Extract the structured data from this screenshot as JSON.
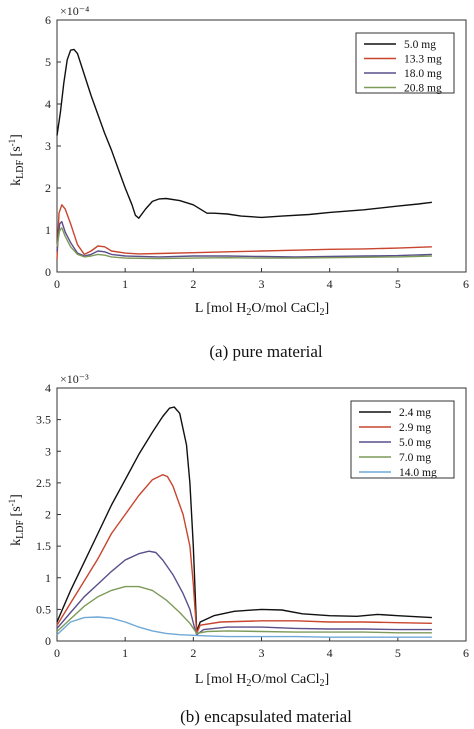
{
  "chart_data": [
    {
      "id": "a",
      "type": "line",
      "caption": "(a) pure material",
      "xlabel": "L [mol H₂O/mol CaCl₂]",
      "ylabel": "k_LDF [s⁻¹]",
      "y_multiplier": "×10⁻⁴",
      "xlim": [
        0,
        6
      ],
      "ylim": [
        0,
        6
      ],
      "xticks": [
        "0",
        "1",
        "2",
        "3",
        "4",
        "5",
        "6"
      ],
      "yticks": [
        "0",
        "1",
        "2",
        "3",
        "4",
        "5",
        "6"
      ],
      "legend_position": "top-right",
      "series": [
        {
          "name": "5.0 mg",
          "color": "#111111",
          "points": [
            [
              0,
              3.25
            ],
            [
              0.05,
              3.8
            ],
            [
              0.1,
              4.5
            ],
            [
              0.15,
              5.05
            ],
            [
              0.2,
              5.28
            ],
            [
              0.25,
              5.3
            ],
            [
              0.3,
              5.2
            ],
            [
              0.4,
              4.7
            ],
            [
              0.5,
              4.2
            ],
            [
              0.6,
              3.75
            ],
            [
              0.7,
              3.3
            ],
            [
              0.8,
              2.9
            ],
            [
              0.9,
              2.45
            ],
            [
              1.0,
              2.0
            ],
            [
              1.1,
              1.6
            ],
            [
              1.15,
              1.35
            ],
            [
              1.2,
              1.28
            ],
            [
              1.3,
              1.5
            ],
            [
              1.4,
              1.68
            ],
            [
              1.5,
              1.74
            ],
            [
              1.6,
              1.75
            ],
            [
              1.8,
              1.7
            ],
            [
              2.0,
              1.6
            ],
            [
              2.2,
              1.4
            ],
            [
              2.3,
              1.4
            ],
            [
              2.5,
              1.38
            ],
            [
              2.7,
              1.33
            ],
            [
              3.0,
              1.3
            ],
            [
              3.3,
              1.33
            ],
            [
              3.7,
              1.37
            ],
            [
              4.0,
              1.42
            ],
            [
              4.5,
              1.48
            ],
            [
              5.0,
              1.57
            ],
            [
              5.3,
              1.62
            ],
            [
              5.5,
              1.66
            ]
          ]
        },
        {
          "name": "13.3 mg",
          "color": "#c8452e",
          "points": [
            [
              0,
              0.3
            ],
            [
              0.03,
              1.4
            ],
            [
              0.07,
              1.6
            ],
            [
              0.12,
              1.5
            ],
            [
              0.2,
              1.15
            ],
            [
              0.3,
              0.65
            ],
            [
              0.4,
              0.42
            ],
            [
              0.5,
              0.5
            ],
            [
              0.6,
              0.62
            ],
            [
              0.7,
              0.6
            ],
            [
              0.8,
              0.5
            ],
            [
              1.0,
              0.45
            ],
            [
              1.2,
              0.43
            ],
            [
              1.5,
              0.44
            ],
            [
              2.0,
              0.46
            ],
            [
              2.5,
              0.48
            ],
            [
              3.0,
              0.5
            ],
            [
              3.5,
              0.52
            ],
            [
              4.0,
              0.54
            ],
            [
              4.5,
              0.55
            ],
            [
              5.0,
              0.57
            ],
            [
              5.5,
              0.6
            ]
          ]
        },
        {
          "name": "18.0 mg",
          "color": "#5a4f8a",
          "points": [
            [
              0,
              0.5
            ],
            [
              0.04,
              1.15
            ],
            [
              0.07,
              1.2
            ],
            [
              0.12,
              0.95
            ],
            [
              0.2,
              0.7
            ],
            [
              0.3,
              0.45
            ],
            [
              0.4,
              0.38
            ],
            [
              0.5,
              0.42
            ],
            [
              0.6,
              0.5
            ],
            [
              0.7,
              0.48
            ],
            [
              0.8,
              0.42
            ],
            [
              1.0,
              0.38
            ],
            [
              1.5,
              0.36
            ],
            [
              2.0,
              0.38
            ],
            [
              2.5,
              0.38
            ],
            [
              3.0,
              0.37
            ],
            [
              3.5,
              0.36
            ],
            [
              4.0,
              0.37
            ],
            [
              4.5,
              0.38
            ],
            [
              5.0,
              0.39
            ],
            [
              5.5,
              0.42
            ]
          ]
        },
        {
          "name": "20.8 mg",
          "color": "#7e9a5a",
          "points": [
            [
              0,
              0.6
            ],
            [
              0.04,
              1.0
            ],
            [
              0.07,
              1.05
            ],
            [
              0.12,
              0.85
            ],
            [
              0.2,
              0.6
            ],
            [
              0.3,
              0.42
            ],
            [
              0.4,
              0.36
            ],
            [
              0.5,
              0.38
            ],
            [
              0.6,
              0.42
            ],
            [
              0.7,
              0.4
            ],
            [
              0.8,
              0.36
            ],
            [
              1.0,
              0.33
            ],
            [
              1.5,
              0.32
            ],
            [
              2.0,
              0.33
            ],
            [
              2.5,
              0.34
            ],
            [
              3.0,
              0.33
            ],
            [
              3.5,
              0.33
            ],
            [
              4.0,
              0.34
            ],
            [
              4.5,
              0.35
            ],
            [
              5.0,
              0.36
            ],
            [
              5.5,
              0.38
            ]
          ]
        }
      ]
    },
    {
      "id": "b",
      "type": "line",
      "caption": "(b) encapsulated material",
      "xlabel": "L [mol H₂O/mol CaCl₂]",
      "ylabel": "k_LDF [s⁻¹]",
      "y_multiplier": "×10⁻³",
      "xlim": [
        0,
        6
      ],
      "ylim": [
        0,
        4
      ],
      "xticks": [
        "0",
        "1",
        "2",
        "3",
        "4",
        "5",
        "6"
      ],
      "yticks": [
        "0",
        "0.5",
        "1",
        "1.5",
        "2",
        "2.5",
        "3",
        "3.5",
        "4"
      ],
      "legend_position": "top-right",
      "series": [
        {
          "name": "2.4 mg",
          "color": "#111111",
          "points": [
            [
              0,
              0.3
            ],
            [
              0.1,
              0.55
            ],
            [
              0.2,
              0.8
            ],
            [
              0.4,
              1.25
            ],
            [
              0.6,
              1.7
            ],
            [
              0.8,
              2.15
            ],
            [
              1.0,
              2.55
            ],
            [
              1.2,
              2.95
            ],
            [
              1.4,
              3.3
            ],
            [
              1.55,
              3.55
            ],
            [
              1.65,
              3.68
            ],
            [
              1.72,
              3.7
            ],
            [
              1.8,
              3.6
            ],
            [
              1.9,
              3.1
            ],
            [
              1.95,
              2.5
            ],
            [
              2.0,
              1.5
            ],
            [
              2.05,
              0.15
            ],
            [
              2.1,
              0.3
            ],
            [
              2.3,
              0.4
            ],
            [
              2.6,
              0.47
            ],
            [
              3.0,
              0.5
            ],
            [
              3.3,
              0.49
            ],
            [
              3.6,
              0.43
            ],
            [
              4.0,
              0.4
            ],
            [
              4.4,
              0.39
            ],
            [
              4.7,
              0.42
            ],
            [
              5.0,
              0.4
            ],
            [
              5.5,
              0.37
            ]
          ]
        },
        {
          "name": "2.9 mg",
          "color": "#c8452e",
          "points": [
            [
              0,
              0.25
            ],
            [
              0.2,
              0.6
            ],
            [
              0.4,
              0.95
            ],
            [
              0.6,
              1.3
            ],
            [
              0.8,
              1.7
            ],
            [
              1.0,
              2.0
            ],
            [
              1.2,
              2.3
            ],
            [
              1.4,
              2.55
            ],
            [
              1.55,
              2.63
            ],
            [
              1.62,
              2.6
            ],
            [
              1.7,
              2.45
            ],
            [
              1.85,
              2.0
            ],
            [
              1.95,
              1.5
            ],
            [
              2.0,
              0.9
            ],
            [
              2.05,
              0.12
            ],
            [
              2.1,
              0.25
            ],
            [
              2.4,
              0.3
            ],
            [
              3.0,
              0.32
            ],
            [
              3.5,
              0.32
            ],
            [
              4.0,
              0.3
            ],
            [
              4.5,
              0.3
            ],
            [
              5.0,
              0.29
            ],
            [
              5.5,
              0.28
            ]
          ]
        },
        {
          "name": "5.0 mg",
          "color": "#5a4f8a",
          "points": [
            [
              0,
              0.2
            ],
            [
              0.2,
              0.45
            ],
            [
              0.4,
              0.7
            ],
            [
              0.6,
              0.9
            ],
            [
              0.8,
              1.1
            ],
            [
              1.0,
              1.28
            ],
            [
              1.2,
              1.38
            ],
            [
              1.35,
              1.42
            ],
            [
              1.45,
              1.4
            ],
            [
              1.55,
              1.28
            ],
            [
              1.7,
              1.05
            ],
            [
              1.85,
              0.75
            ],
            [
              1.95,
              0.5
            ],
            [
              2.02,
              0.2
            ],
            [
              2.05,
              0.1
            ],
            [
              2.15,
              0.18
            ],
            [
              2.5,
              0.22
            ],
            [
              3.0,
              0.22
            ],
            [
              3.5,
              0.2
            ],
            [
              4.0,
              0.19
            ],
            [
              4.5,
              0.19
            ],
            [
              5.0,
              0.18
            ],
            [
              5.5,
              0.18
            ]
          ]
        },
        {
          "name": "7.0 mg",
          "color": "#7e9a5a",
          "points": [
            [
              0,
              0.15
            ],
            [
              0.2,
              0.35
            ],
            [
              0.4,
              0.55
            ],
            [
              0.6,
              0.7
            ],
            [
              0.8,
              0.8
            ],
            [
              1.0,
              0.86
            ],
            [
              1.2,
              0.86
            ],
            [
              1.4,
              0.8
            ],
            [
              1.6,
              0.65
            ],
            [
              1.8,
              0.45
            ],
            [
              1.95,
              0.28
            ],
            [
              2.05,
              0.12
            ],
            [
              2.2,
              0.15
            ],
            [
              2.5,
              0.16
            ],
            [
              3.0,
              0.15
            ],
            [
              3.5,
              0.14
            ],
            [
              4.0,
              0.14
            ],
            [
              4.5,
              0.14
            ],
            [
              5.0,
              0.13
            ],
            [
              5.5,
              0.13
            ]
          ]
        },
        {
          "name": "14.0 mg",
          "color": "#6fa8d6",
          "points": [
            [
              0,
              0.1
            ],
            [
              0.2,
              0.3
            ],
            [
              0.4,
              0.37
            ],
            [
              0.6,
              0.38
            ],
            [
              0.8,
              0.36
            ],
            [
              1.0,
              0.3
            ],
            [
              1.2,
              0.22
            ],
            [
              1.4,
              0.16
            ],
            [
              1.6,
              0.12
            ],
            [
              1.8,
              0.1
            ],
            [
              2.0,
              0.09
            ],
            [
              2.2,
              0.08
            ],
            [
              2.5,
              0.07
            ],
            [
              3.0,
              0.07
            ],
            [
              3.5,
              0.07
            ],
            [
              4.0,
              0.06
            ],
            [
              4.5,
              0.06
            ],
            [
              5.0,
              0.06
            ],
            [
              5.5,
              0.06
            ]
          ]
        }
      ]
    }
  ]
}
